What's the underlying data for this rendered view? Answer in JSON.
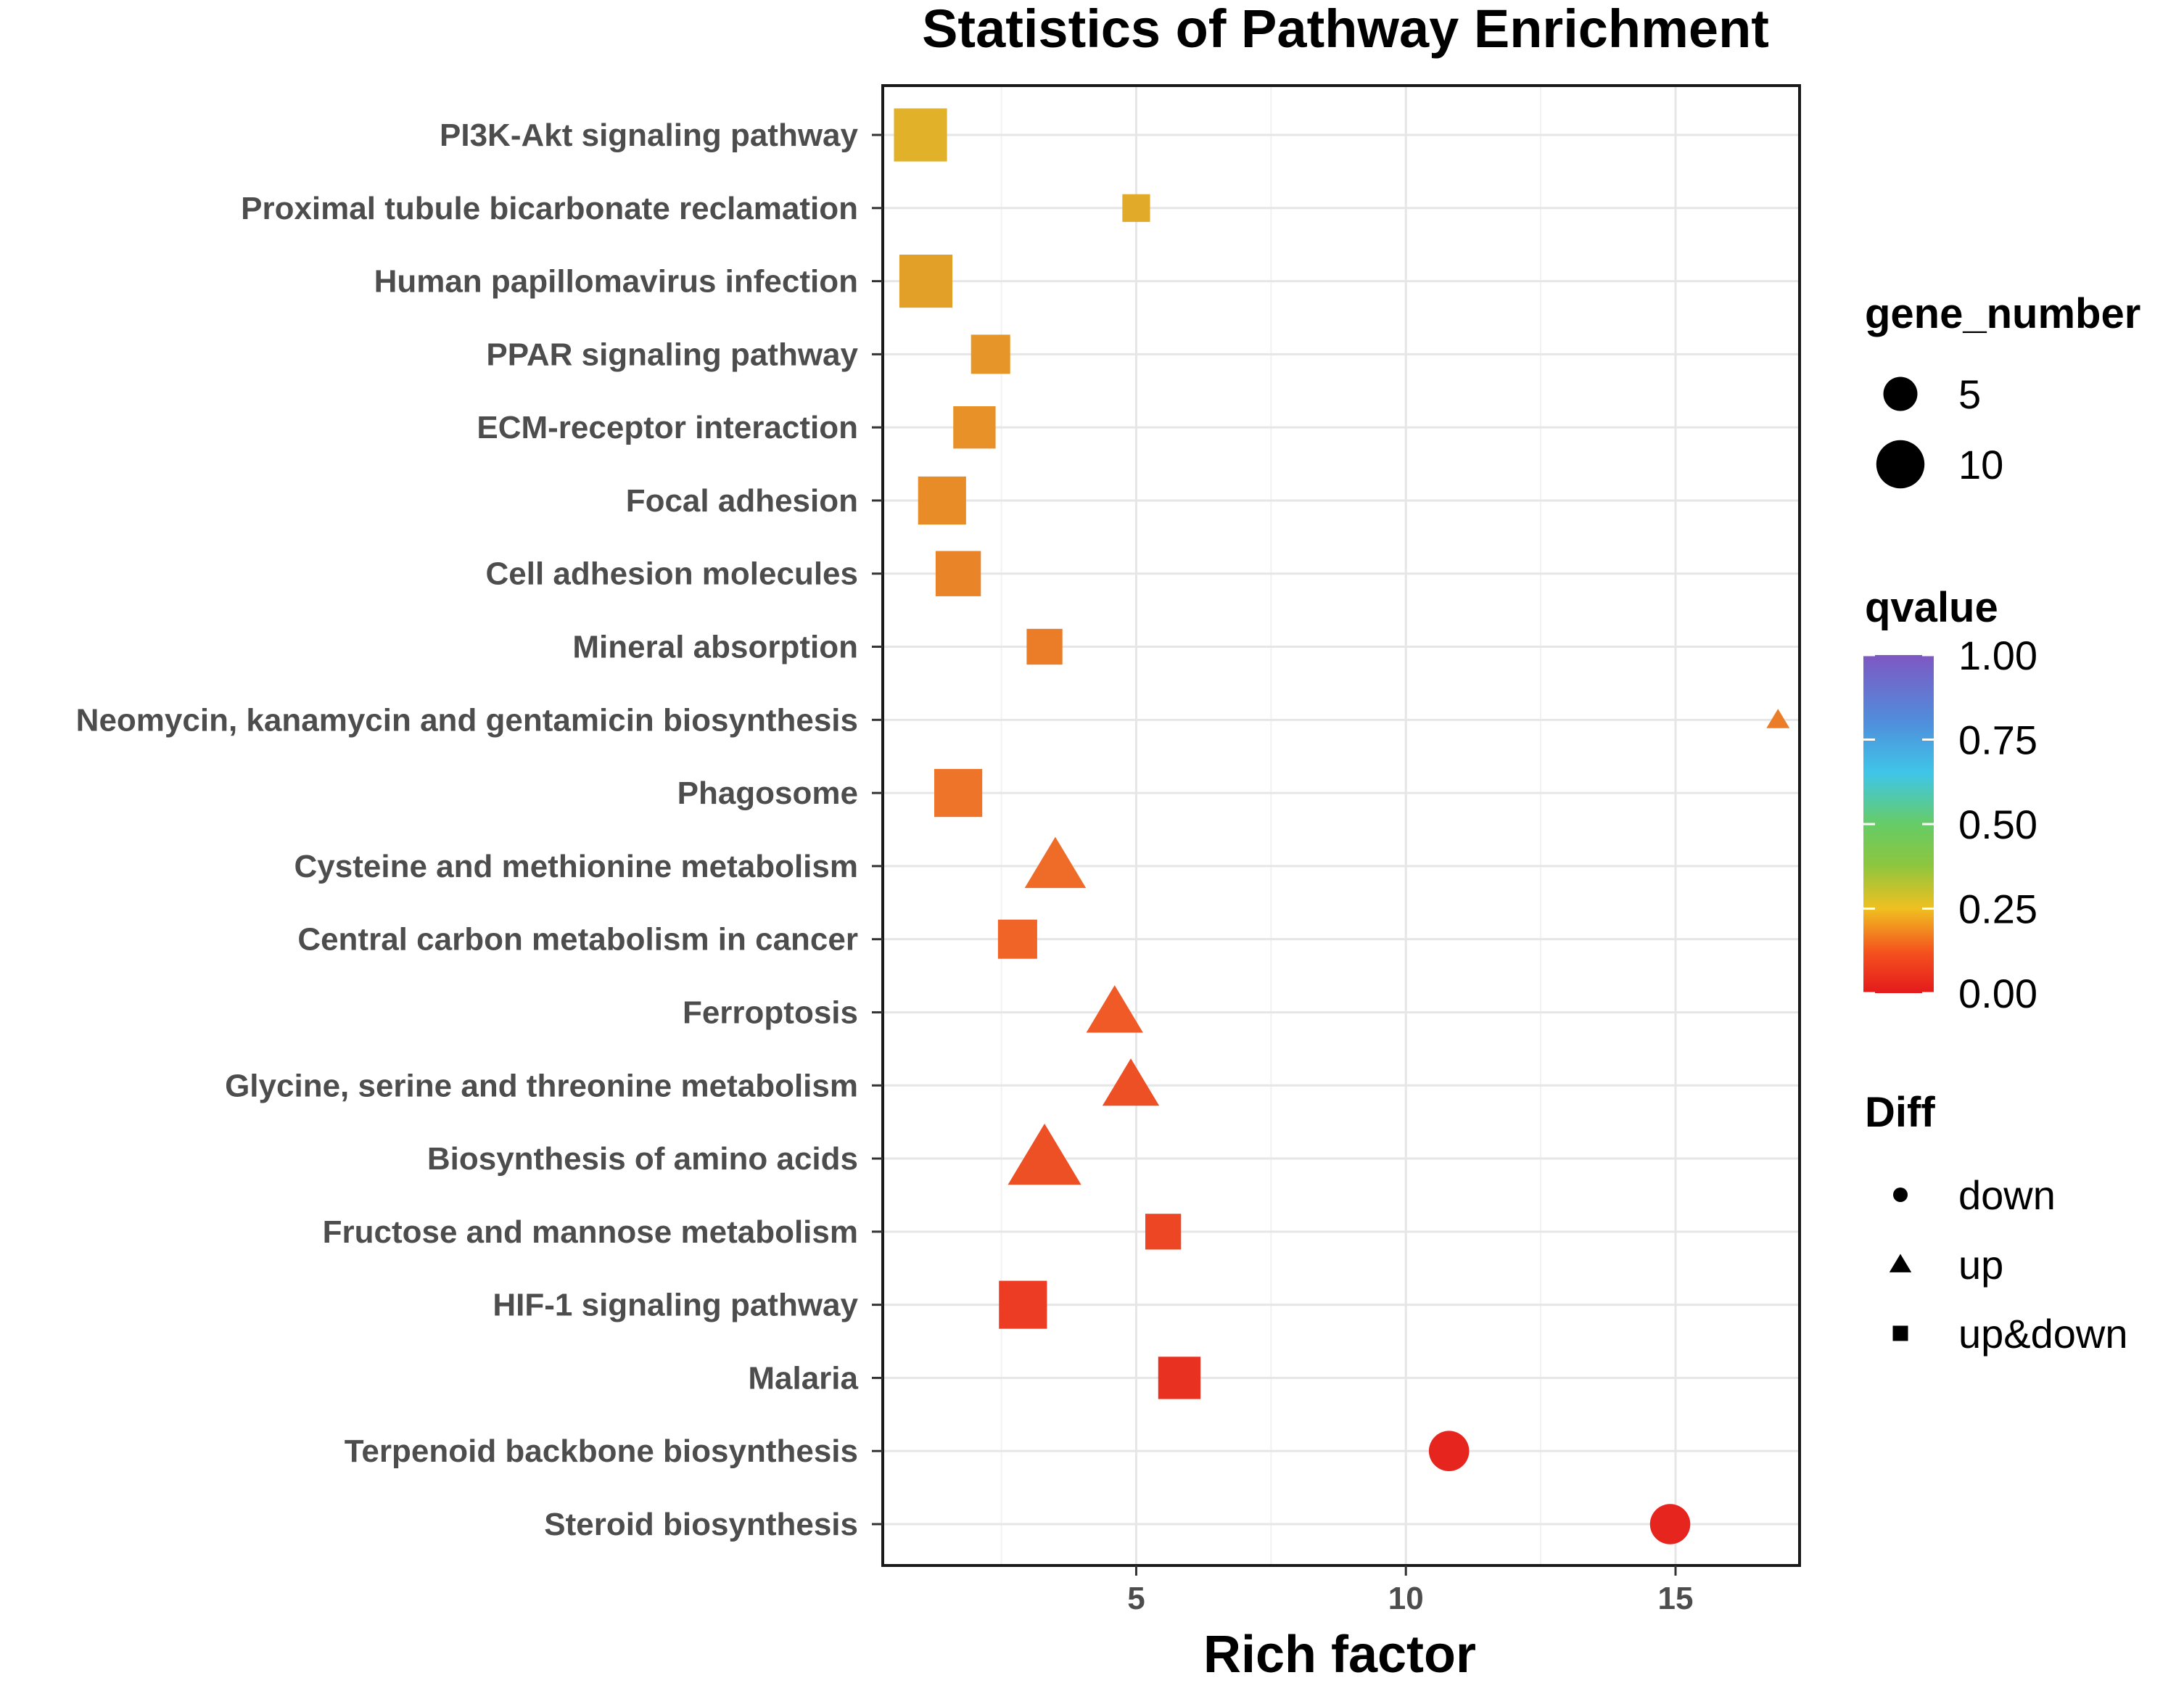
{
  "chart_data": {
    "type": "scatter",
    "title": "Statistics of Pathway Enrichment",
    "xlabel": "Rich factor",
    "ylabel": "",
    "xlim": [
      0.3,
      17.3
    ],
    "xticks": [
      5,
      10,
      15
    ],
    "grid": true,
    "points": [
      {
        "pathway": "PI3K-Akt signaling pathway",
        "rich_factor": 1.0,
        "gene_number": 11,
        "qvalue": 0.2,
        "diff": "up&down"
      },
      {
        "pathway": "Proximal tubule bicarbonate reclamation",
        "rich_factor": 5.0,
        "gene_number": 3,
        "qvalue": 0.18,
        "diff": "up&down"
      },
      {
        "pathway": "Human papillomavirus infection",
        "rich_factor": 1.1,
        "gene_number": 11,
        "qvalue": 0.16,
        "diff": "up&down"
      },
      {
        "pathway": "PPAR signaling pathway",
        "rich_factor": 2.3,
        "gene_number": 6,
        "qvalue": 0.14,
        "diff": "up&down"
      },
      {
        "pathway": "ECM-receptor interaction",
        "rich_factor": 2.0,
        "gene_number": 7,
        "qvalue": 0.13,
        "diff": "up&down"
      },
      {
        "pathway": "Focal adhesion",
        "rich_factor": 1.4,
        "gene_number": 9,
        "qvalue": 0.12,
        "diff": "up&down"
      },
      {
        "pathway": "Cell adhesion molecules",
        "rich_factor": 1.7,
        "gene_number": 8,
        "qvalue": 0.11,
        "diff": "up&down"
      },
      {
        "pathway": "Mineral absorption",
        "rich_factor": 3.3,
        "gene_number": 5,
        "qvalue": 0.1,
        "diff": "up&down"
      },
      {
        "pathway": "Neomycin, kanamycin and gentamicin biosynthesis",
        "rich_factor": 16.9,
        "gene_number": 1,
        "qvalue": 0.1,
        "diff": "up"
      },
      {
        "pathway": "Phagosome",
        "rich_factor": 1.7,
        "gene_number": 9,
        "qvalue": 0.09,
        "diff": "up&down"
      },
      {
        "pathway": "Cysteine and methionine metabolism",
        "rich_factor": 3.5,
        "gene_number": 7,
        "qvalue": 0.08,
        "diff": "up"
      },
      {
        "pathway": "Central carbon metabolism in cancer",
        "rich_factor": 2.8,
        "gene_number": 6,
        "qvalue": 0.07,
        "diff": "up&down"
      },
      {
        "pathway": "Ferroptosis",
        "rich_factor": 4.6,
        "gene_number": 6,
        "qvalue": 0.06,
        "diff": "up"
      },
      {
        "pathway": "Glycine, serine and threonine metabolism",
        "rich_factor": 4.9,
        "gene_number": 6,
        "qvalue": 0.05,
        "diff": "up"
      },
      {
        "pathway": "Biosynthesis of amino acids",
        "rich_factor": 3.3,
        "gene_number": 10,
        "qvalue": 0.05,
        "diff": "up"
      },
      {
        "pathway": "Fructose and mannose metabolism",
        "rich_factor": 5.5,
        "gene_number": 5,
        "qvalue": 0.04,
        "diff": "up&down"
      },
      {
        "pathway": "HIF-1 signaling pathway",
        "rich_factor": 2.9,
        "gene_number": 9,
        "qvalue": 0.03,
        "diff": "up&down"
      },
      {
        "pathway": "Malaria",
        "rich_factor": 5.8,
        "gene_number": 7,
        "qvalue": 0.02,
        "diff": "up&down"
      },
      {
        "pathway": "Terpenoid backbone biosynthesis",
        "rich_factor": 10.8,
        "gene_number": 7,
        "qvalue": 0.01,
        "diff": "down"
      },
      {
        "pathway": "Steroid biosynthesis",
        "rich_factor": 14.9,
        "gene_number": 7,
        "qvalue": 0.01,
        "diff": "down"
      }
    ],
    "legend": {
      "placement": "right",
      "size": {
        "title": "gene_number",
        "values": [
          5,
          10
        ],
        "labels": [
          "5",
          "10"
        ]
      },
      "color": {
        "title": "qvalue",
        "breaks": [
          1.0,
          0.75,
          0.5,
          0.25,
          0.0
        ],
        "labels": [
          "1.00",
          "0.75",
          "0.50",
          "0.25",
          "0.00"
        ],
        "low_color": "#e41a1c",
        "high_color": "#7e57c2"
      },
      "shape": {
        "title": "Diff",
        "items": [
          {
            "shape": "circle",
            "label": "down"
          },
          {
            "shape": "triangle",
            "label": "up"
          },
          {
            "shape": "square",
            "label": "up&down"
          }
        ]
      }
    }
  }
}
